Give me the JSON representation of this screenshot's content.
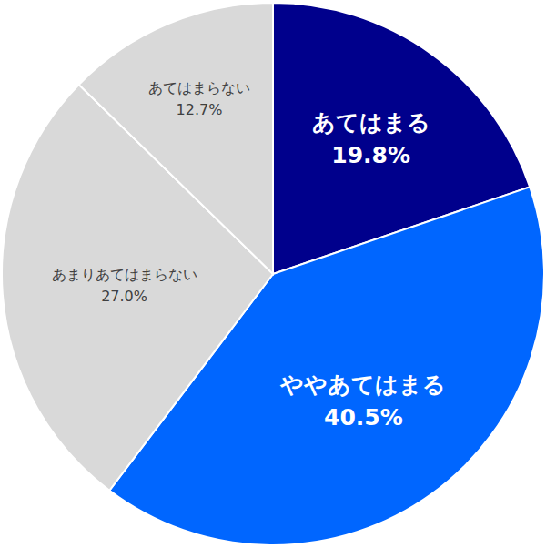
{
  "chart_data": {
    "type": "pie",
    "categories": [
      "あてはまる",
      "ややあてはまる",
      "あまりあてはまらない",
      "あてはまらない"
    ],
    "values": [
      19.8,
      40.5,
      27.0,
      12.7
    ],
    "value_labels": [
      "19.8%",
      "40.5%",
      "27.0%",
      "12.7%"
    ],
    "colors": [
      "#00008c",
      "#0066ff",
      "#d9d9d9",
      "#d9d9d9"
    ],
    "data_labels": true
  }
}
